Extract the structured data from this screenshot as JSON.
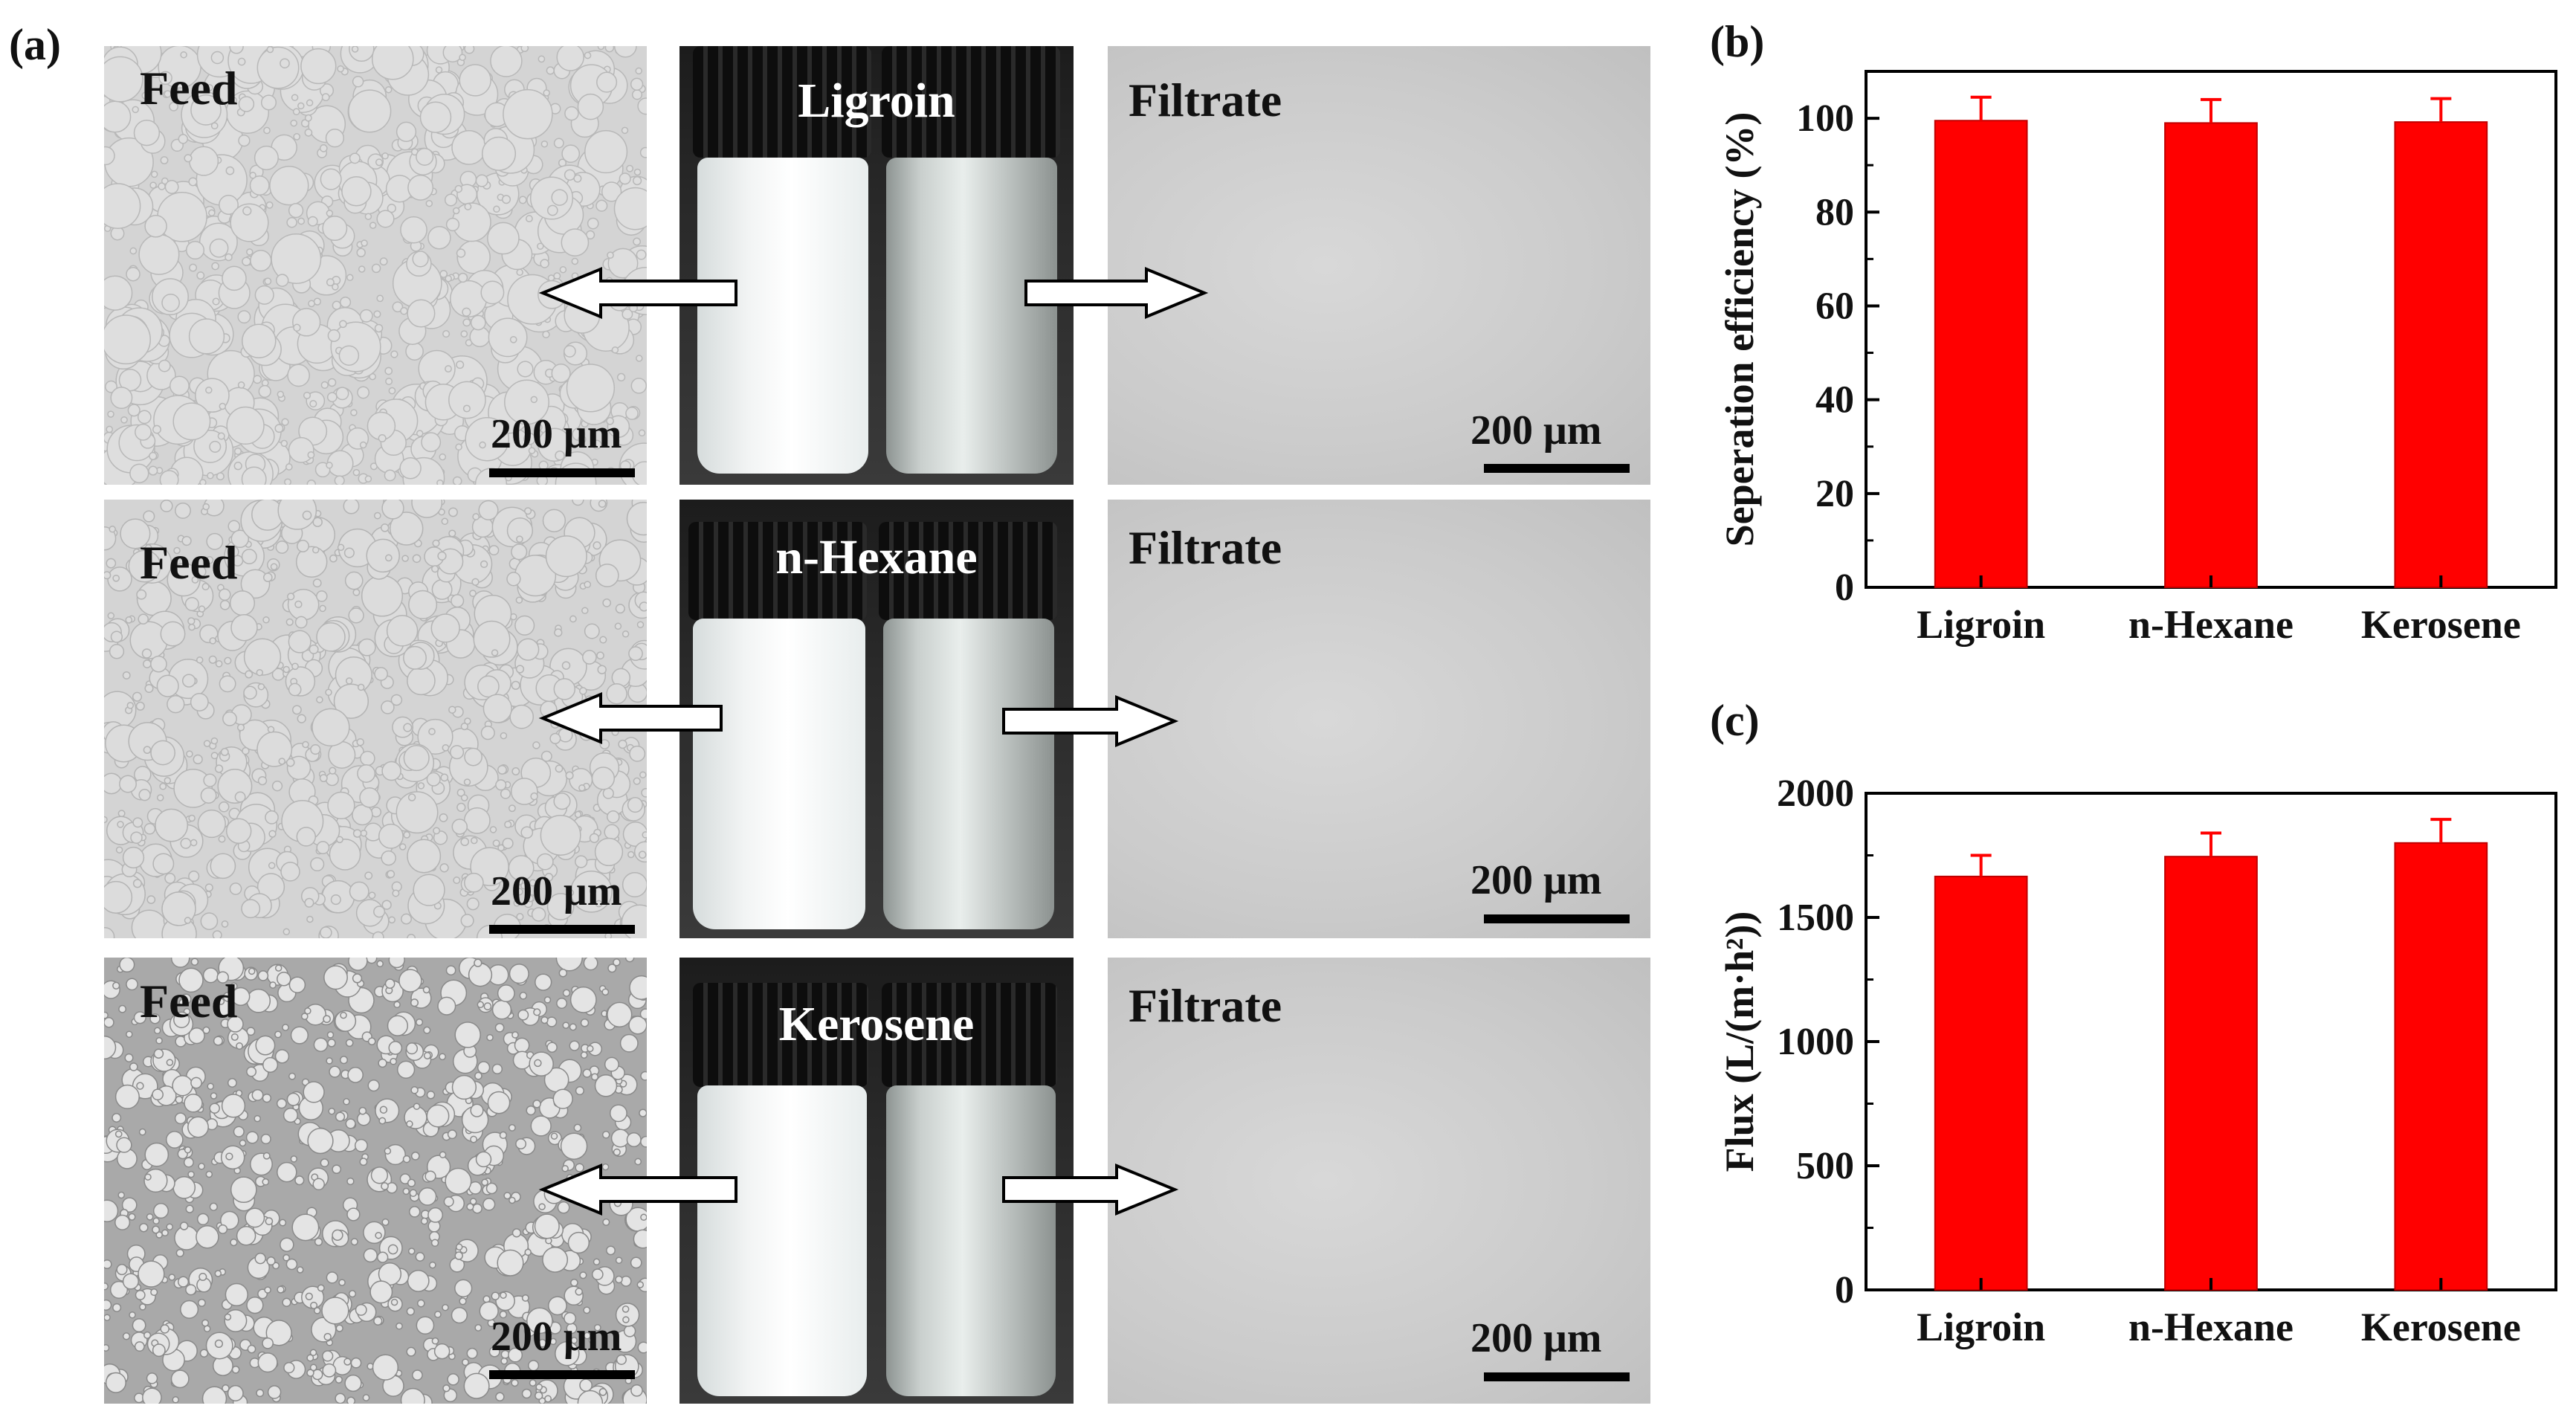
{
  "panel_labels": {
    "a": "(a)",
    "b": "(b)",
    "c": "(c)"
  },
  "micrographs": {
    "feed_label": "Feed",
    "filtrate_label": "Filtrate",
    "scale_bar": "200 μm"
  },
  "vials": [
    "Ligroin",
    "n-Hexane",
    "Kerosene"
  ],
  "colors": {
    "bar": "#ff0000",
    "bar_edge": "#c00000",
    "error_bar": "#ff0000",
    "axis": "#000000"
  },
  "chart_data": [
    {
      "type": "bar",
      "panel": "(b)",
      "categories": [
        "Ligroin",
        "n-Hexane",
        "Kerosene"
      ],
      "values": [
        99.5,
        99.0,
        99.2
      ],
      "errors": [
        5,
        5,
        5
      ],
      "ylabel": "Seperation efficiency (%)",
      "xlabel": "",
      "ylim": [
        0,
        110
      ],
      "yticks": [
        0,
        20,
        40,
        60,
        80,
        100
      ],
      "grid": false
    },
    {
      "type": "bar",
      "panel": "(c)",
      "categories": [
        "Ligroin",
        "n-Hexane",
        "Kerosene"
      ],
      "values": [
        1665,
        1745,
        1800
      ],
      "errors": [
        85,
        95,
        95
      ],
      "ylabel": "Flux (L/(m·h²))",
      "xlabel": "",
      "ylim": [
        0,
        2000
      ],
      "yticks": [
        0,
        500,
        1000,
        1500,
        2000
      ],
      "grid": false
    }
  ]
}
